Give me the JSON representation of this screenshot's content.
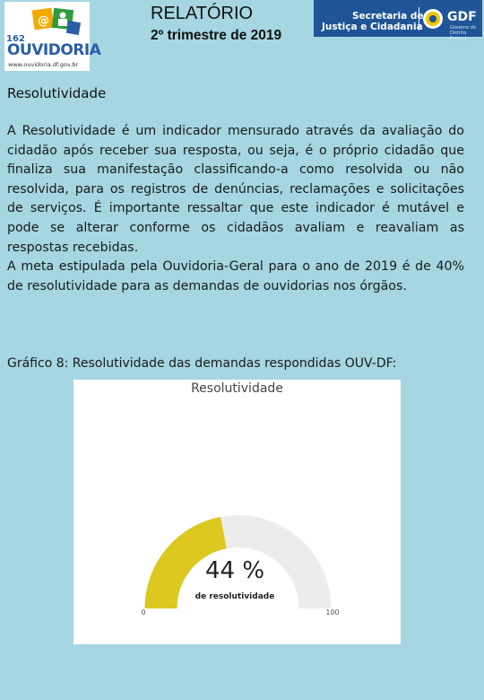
{
  "header": {
    "logo": {
      "number": "162",
      "word": "OUVIDORIA",
      "url": "www.ouvidoria.df.gov.br",
      "icon": "ouvidoria-logo"
    },
    "title": "RELATÓRIO",
    "subtitle": "2º trimestre de 2019",
    "government": {
      "line1": "Secretaria de",
      "line2": "Justiça e Cidadania",
      "brand": "GDF",
      "tagline": "Governo do Distrito Federal",
      "color": "#1f5597",
      "icon": "sun-emblem"
    }
  },
  "section": {
    "heading": "Resolutividade",
    "paragraphs": [
      "A Resolutividade é um indicador mensurado através da avaliação do cidadão após receber sua resposta, ou seja, é o próprio cidadão que finaliza sua manifestação classificando-a como resolvida ou não resolvida, para os registros de denúncias, reclamações e solicitações de serviços. É importante ressaltar que este indicador é mutável e pode se alterar conforme os cidadãos avaliam e reavaliam as respostas recebidas.",
      "A meta estipulada pela Ouvidoria-Geral para o ano de 2019 é de 40% de resolutividade para as demandas de ouvidorias nos órgãos."
    ],
    "caption": "Gráfico 8: Resolutividade das demandas respondidas OUV-DF:"
  },
  "chart_data": {
    "type": "gauge",
    "title": "Resolutividade",
    "value": 44,
    "value_label": "44 %",
    "sublabel": "de resolutividade",
    "min": 0,
    "max": 100,
    "min_label": "0",
    "max_label": "100",
    "colors": {
      "fill": "#dcc81f",
      "track": "#ececec"
    }
  }
}
